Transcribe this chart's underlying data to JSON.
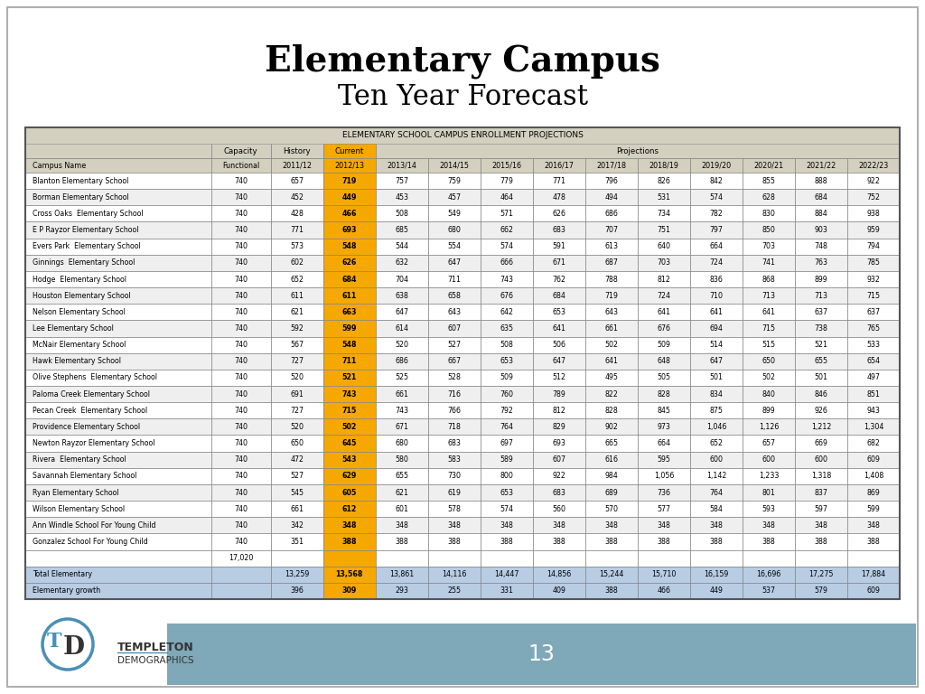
{
  "title_line1": "Elementary Campus",
  "title_line2": "Ten Year Forecast",
  "table_title": "ELEMENTARY SCHOOL CAMPUS ENROLLMENT PROJECTIONS",
  "header_row2": [
    "Campus Name",
    "Functional",
    "2011/12",
    "2012/13",
    "2013/14",
    "2014/15",
    "2015/16",
    "2016/17",
    "2017/18",
    "2018/19",
    "2019/20",
    "2020/21",
    "2021/22",
    "2022/23"
  ],
  "rows": [
    [
      "Blanton Elementary School",
      "740",
      "657",
      "719",
      "757",
      "759",
      "779",
      "771",
      "796",
      "826",
      "842",
      "855",
      "888",
      "922"
    ],
    [
      "Borman Elementary School",
      "740",
      "452",
      "449",
      "453",
      "457",
      "464",
      "478",
      "494",
      "531",
      "574",
      "628",
      "684",
      "752"
    ],
    [
      "Cross Oaks  Elementary School",
      "740",
      "428",
      "466",
      "508",
      "549",
      "571",
      "626",
      "686",
      "734",
      "782",
      "830",
      "884",
      "938"
    ],
    [
      "E P Rayzor Elementary School",
      "740",
      "771",
      "693",
      "685",
      "680",
      "662",
      "683",
      "707",
      "751",
      "797",
      "850",
      "903",
      "959"
    ],
    [
      "Evers Park  Elementary School",
      "740",
      "573",
      "548",
      "544",
      "554",
      "574",
      "591",
      "613",
      "640",
      "664",
      "703",
      "748",
      "794"
    ],
    [
      "Ginnings  Elementary School",
      "740",
      "602",
      "626",
      "632",
      "647",
      "666",
      "671",
      "687",
      "703",
      "724",
      "741",
      "763",
      "785"
    ],
    [
      "Hodge  Elementary School",
      "740",
      "652",
      "684",
      "704",
      "711",
      "743",
      "762",
      "788",
      "812",
      "836",
      "868",
      "899",
      "932"
    ],
    [
      "Houston Elementary School",
      "740",
      "611",
      "611",
      "638",
      "658",
      "676",
      "684",
      "719",
      "724",
      "710",
      "713",
      "713",
      "715"
    ],
    [
      "Nelson Elementary School",
      "740",
      "621",
      "663",
      "647",
      "643",
      "642",
      "653",
      "643",
      "641",
      "641",
      "641",
      "637",
      "637"
    ],
    [
      "Lee Elementary School",
      "740",
      "592",
      "599",
      "614",
      "607",
      "635",
      "641",
      "661",
      "676",
      "694",
      "715",
      "738",
      "765"
    ],
    [
      "McNair Elementary School",
      "740",
      "567",
      "548",
      "520",
      "527",
      "508",
      "506",
      "502",
      "509",
      "514",
      "515",
      "521",
      "533"
    ],
    [
      "Hawk Elementary School",
      "740",
      "727",
      "711",
      "686",
      "667",
      "653",
      "647",
      "641",
      "648",
      "647",
      "650",
      "655",
      "654"
    ],
    [
      "Olive Stephens  Elementary School",
      "740",
      "520",
      "521",
      "525",
      "528",
      "509",
      "512",
      "495",
      "505",
      "501",
      "502",
      "501",
      "497"
    ],
    [
      "Paloma Creek Elementary School",
      "740",
      "691",
      "743",
      "661",
      "716",
      "760",
      "789",
      "822",
      "828",
      "834",
      "840",
      "846",
      "851"
    ],
    [
      "Pecan Creek  Elementary School",
      "740",
      "727",
      "715",
      "743",
      "766",
      "792",
      "812",
      "828",
      "845",
      "875",
      "899",
      "926",
      "943"
    ],
    [
      "Providence Elementary School",
      "740",
      "520",
      "502",
      "671",
      "718",
      "764",
      "829",
      "902",
      "973",
      "1,046",
      "1,126",
      "1,212",
      "1,304"
    ],
    [
      "Newton Rayzor Elementary School",
      "740",
      "650",
      "645",
      "680",
      "683",
      "697",
      "693",
      "665",
      "664",
      "652",
      "657",
      "669",
      "682"
    ],
    [
      "Rivera  Elementary School",
      "740",
      "472",
      "543",
      "580",
      "583",
      "589",
      "607",
      "616",
      "595",
      "600",
      "600",
      "600",
      "609"
    ],
    [
      "Savannah Elementary School",
      "740",
      "527",
      "629",
      "655",
      "730",
      "800",
      "922",
      "984",
      "1,056",
      "1,142",
      "1,233",
      "1,318",
      "1,408"
    ],
    [
      "Ryan Elementary School",
      "740",
      "545",
      "605",
      "621",
      "619",
      "653",
      "683",
      "689",
      "736",
      "764",
      "801",
      "837",
      "869"
    ],
    [
      "Wilson Elementary School",
      "740",
      "661",
      "612",
      "601",
      "578",
      "574",
      "560",
      "570",
      "577",
      "584",
      "593",
      "597",
      "599"
    ],
    [
      "Ann Windle School For Young Child",
      "740",
      "342",
      "348",
      "348",
      "348",
      "348",
      "348",
      "348",
      "348",
      "348",
      "348",
      "348",
      "348"
    ],
    [
      "Gonzalez School For Young Child",
      "740",
      "351",
      "388",
      "388",
      "388",
      "388",
      "388",
      "388",
      "388",
      "388",
      "388",
      "388",
      "388"
    ]
  ],
  "total_row": [
    "Total Elementary",
    "",
    "13,259",
    "13,568",
    "13,861",
    "14,116",
    "14,447",
    "14,856",
    "15,244",
    "15,710",
    "16,159",
    "16,696",
    "17,275",
    "17,884"
  ],
  "growth_row": [
    "Elementary growth",
    "",
    "396",
    "309",
    "293",
    "255",
    "331",
    "409",
    "388",
    "466",
    "449",
    "537",
    "579",
    "609"
  ],
  "bg_color": "#ffffff",
  "slide_border": "#b0b0b0",
  "header_bg": "#d4d0c0",
  "orange_color": "#F5A800",
  "blue_row_bg": "#b8cce4",
  "title_color": "#000000",
  "page_number": "13",
  "footer_bg": "#7fa8b8",
  "col_widths_raw": [
    2.55,
    0.82,
    0.72,
    0.72,
    0.72,
    0.72,
    0.72,
    0.72,
    0.72,
    0.72,
    0.72,
    0.72,
    0.72,
    0.72
  ]
}
